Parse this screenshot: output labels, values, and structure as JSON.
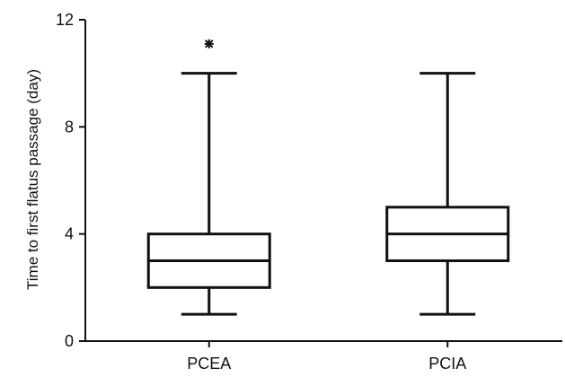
{
  "chart_data": {
    "type": "boxplot",
    "ylabel": "Time to first flatus passage (day)",
    "xlabel": "",
    "ylim": [
      0,
      12
    ],
    "yticks": [
      0,
      4,
      8,
      12
    ],
    "grid": false,
    "categories": [
      "PCEA",
      "PCIA"
    ],
    "boxes": [
      {
        "category": "PCEA",
        "whisker_low": 1,
        "q1": 2,
        "median": 3,
        "q3": 4,
        "whisker_high": 10,
        "outliers": [
          11.1
        ]
      },
      {
        "category": "PCIA",
        "whisker_low": 1,
        "q1": 3,
        "median": 4,
        "q3": 5,
        "whisker_high": 10,
        "outliers": []
      }
    ],
    "outlier_marker": "asterisk",
    "colors": {
      "stroke": "#111111",
      "fill": "#ffffff"
    }
  }
}
